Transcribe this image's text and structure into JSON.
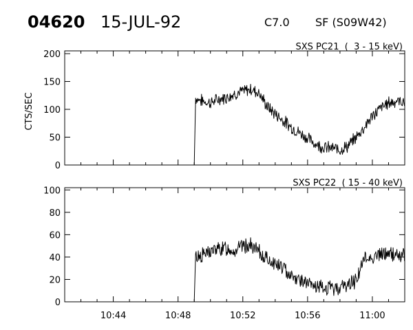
{
  "header": {
    "event_id": "04620",
    "date": "15-JUL-92",
    "goes_class": "C7.0",
    "flare_location": "SF (S09W42)"
  },
  "chart_data": [
    {
      "type": "line",
      "label": "SXS PC21  (  3 - 15 keV)",
      "ylabel": "CTS/SEC",
      "xlim": [
        "10:41:00",
        "11:02:00"
      ],
      "ylim": [
        0,
        205
      ],
      "yticks": [
        0,
        50,
        100,
        150,
        200
      ],
      "ytick_labels": [
        "0",
        "50",
        "100",
        "150",
        "200"
      ],
      "xticks": [
        "10:44",
        "10:48",
        "10:52",
        "10:56",
        "11:00"
      ],
      "xtick_labels": [],
      "grid": false,
      "series": [
        {
          "x": [
            "10:41:00",
            "10:49:00",
            "10:49:05",
            "10:49:30",
            "10:50:00",
            "10:50:30",
            "10:51:00",
            "10:51:30",
            "10:52:00",
            "10:52:30",
            "10:53:00",
            "10:53:30",
            "10:54:00",
            "10:54:30",
            "10:55:00",
            "10:55:30",
            "10:56:00",
            "10:56:30",
            "10:57:00",
            "10:57:30",
            "10:58:00",
            "10:58:30",
            "10:59:00",
            "10:59:30",
            "11:00:00",
            "11:00:30",
            "11:01:00",
            "11:01:30",
            "11:02:00"
          ],
          "values": [
            0,
            0,
            120,
            115,
            112,
            118,
            122,
            128,
            132,
            136,
            130,
            105,
            92,
            80,
            68,
            58,
            48,
            38,
            32,
            30,
            28,
            34,
            50,
            68,
            88,
            102,
            112,
            115,
            113
          ],
          "noise": 10
        }
      ]
    },
    {
      "type": "line",
      "label": "SXS PC22  ( 15 - 40 keV)",
      "ylabel": "",
      "xlim": [
        "10:41:00",
        "11:02:00"
      ],
      "ylim": [
        0,
        102
      ],
      "yticks": [
        0,
        20,
        40,
        60,
        80,
        100
      ],
      "ytick_labels": [
        "0",
        "20",
        "40",
        "60",
        "80",
        "100"
      ],
      "xticks": [
        "10:44",
        "10:48",
        "10:52",
        "10:56",
        "11:00"
      ],
      "xtick_labels": [
        "10:44",
        "10:48",
        "10:52",
        "10:56",
        "11:00"
      ],
      "grid": false,
      "series": [
        {
          "x": [
            "10:41:00",
            "10:49:00",
            "10:49:05",
            "10:49:30",
            "10:50:00",
            "10:50:30",
            "10:51:00",
            "10:51:30",
            "10:52:00",
            "10:52:30",
            "10:53:00",
            "10:53:30",
            "10:54:00",
            "10:54:30",
            "10:55:00",
            "10:55:30",
            "10:56:00",
            "10:56:30",
            "10:57:00",
            "10:57:30",
            "10:58:00",
            "10:58:30",
            "10:59:00",
            "10:59:30",
            "11:00:00",
            "11:00:30",
            "11:01:00",
            "11:01:30",
            "11:02:00"
          ],
          "values": [
            0,
            0,
            40,
            42,
            45,
            47,
            48,
            46,
            50,
            50,
            44,
            38,
            34,
            30,
            24,
            20,
            16,
            13,
            12,
            12,
            13,
            15,
            20,
            38,
            40,
            42,
            43,
            42,
            41
          ],
          "noise": 6
        }
      ]
    }
  ]
}
